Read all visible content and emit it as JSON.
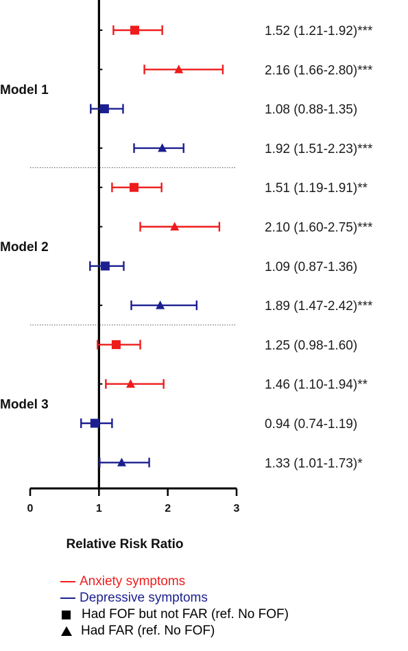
{
  "colors": {
    "anxiety": "#ee1c1c",
    "depressive": "#1b1f8f",
    "axis": "#000000"
  },
  "chart_data": {
    "type": "forest",
    "xlabel": "Relative Risk Ratio",
    "xlim": [
      0,
      3
    ],
    "xticks": [
      "0",
      "1",
      "2",
      "3"
    ],
    "reference_line": 1,
    "groups": [
      {
        "name": "Model 1",
        "rows": [
          {
            "outcome": "Anxiety symptoms",
            "exposure": "Had FOF but not FAR (ref. No FOF)",
            "marker": "square",
            "rr": 1.52,
            "lo": 1.21,
            "hi": 1.92,
            "label": "1.52 (1.21-1.92)***"
          },
          {
            "outcome": "Anxiety symptoms",
            "exposure": "Had FAR (ref. No FOF)",
            "marker": "triangle",
            "rr": 2.16,
            "lo": 1.66,
            "hi": 2.8,
            "label": "2.16 (1.66-2.80)***"
          },
          {
            "outcome": "Depressive symptoms",
            "exposure": "Had FOF but not FAR (ref. No FOF)",
            "marker": "square",
            "rr": 1.08,
            "lo": 0.88,
            "hi": 1.35,
            "label": "1.08 (0.88-1.35)"
          },
          {
            "outcome": "Depressive symptoms",
            "exposure": "Had FAR (ref. No FOF)",
            "marker": "triangle",
            "rr": 1.92,
            "lo": 1.51,
            "hi": 2.23,
            "label": "1.92 (1.51-2.23)***"
          }
        ]
      },
      {
        "name": "Model 2",
        "rows": [
          {
            "outcome": "Anxiety symptoms",
            "exposure": "Had FOF but not FAR (ref. No FOF)",
            "marker": "square",
            "rr": 1.51,
            "lo": 1.19,
            "hi": 1.91,
            "label": "1.51 (1.19-1.91)**"
          },
          {
            "outcome": "Anxiety symptoms",
            "exposure": "Had FAR (ref. No FOF)",
            "marker": "triangle",
            "rr": 2.1,
            "lo": 1.6,
            "hi": 2.75,
            "label": "2.10 (1.60-2.75)***"
          },
          {
            "outcome": "Depressive symptoms",
            "exposure": "Had FOF but not FAR (ref. No FOF)",
            "marker": "square",
            "rr": 1.09,
            "lo": 0.87,
            "hi": 1.36,
            "label": "1.09 (0.87-1.36)"
          },
          {
            "outcome": "Depressive symptoms",
            "exposure": "Had FAR (ref. No FOF)",
            "marker": "triangle",
            "rr": 1.89,
            "lo": 1.47,
            "hi": 2.42,
            "label": "1.89 (1.47-2.42)***"
          }
        ]
      },
      {
        "name": "Model 3",
        "rows": [
          {
            "outcome": "Anxiety symptoms",
            "exposure": "Had FOF but not FAR (ref. No FOF)",
            "marker": "square",
            "rr": 1.25,
            "lo": 0.98,
            "hi": 1.6,
            "label": "1.25 (0.98-1.60)"
          },
          {
            "outcome": "Anxiety symptoms",
            "exposure": "Had FAR (ref. No FOF)",
            "marker": "triangle",
            "rr": 1.46,
            "lo": 1.1,
            "hi": 1.94,
            "label": "1.46 (1.10-1.94)**"
          },
          {
            "outcome": "Depressive symptoms",
            "exposure": "Had FOF but not FAR (ref. No FOF)",
            "marker": "square",
            "rr": 0.94,
            "lo": 0.74,
            "hi": 1.19,
            "label": "0.94 (0.74-1.19)"
          },
          {
            "outcome": "Depressive symptoms",
            "exposure": "Had FAR (ref. No FOF)",
            "marker": "triangle",
            "rr": 1.33,
            "lo": 1.01,
            "hi": 1.73,
            "label": "1.33 (1.01-1.73)*"
          }
        ]
      }
    ]
  },
  "legend": {
    "anxiety": "Anxiety symptoms",
    "depressive": "Depressive symptoms",
    "square": "Had FOF but not FAR (ref. No FOF)",
    "triangle": "Had FAR (ref. No FOF)"
  }
}
